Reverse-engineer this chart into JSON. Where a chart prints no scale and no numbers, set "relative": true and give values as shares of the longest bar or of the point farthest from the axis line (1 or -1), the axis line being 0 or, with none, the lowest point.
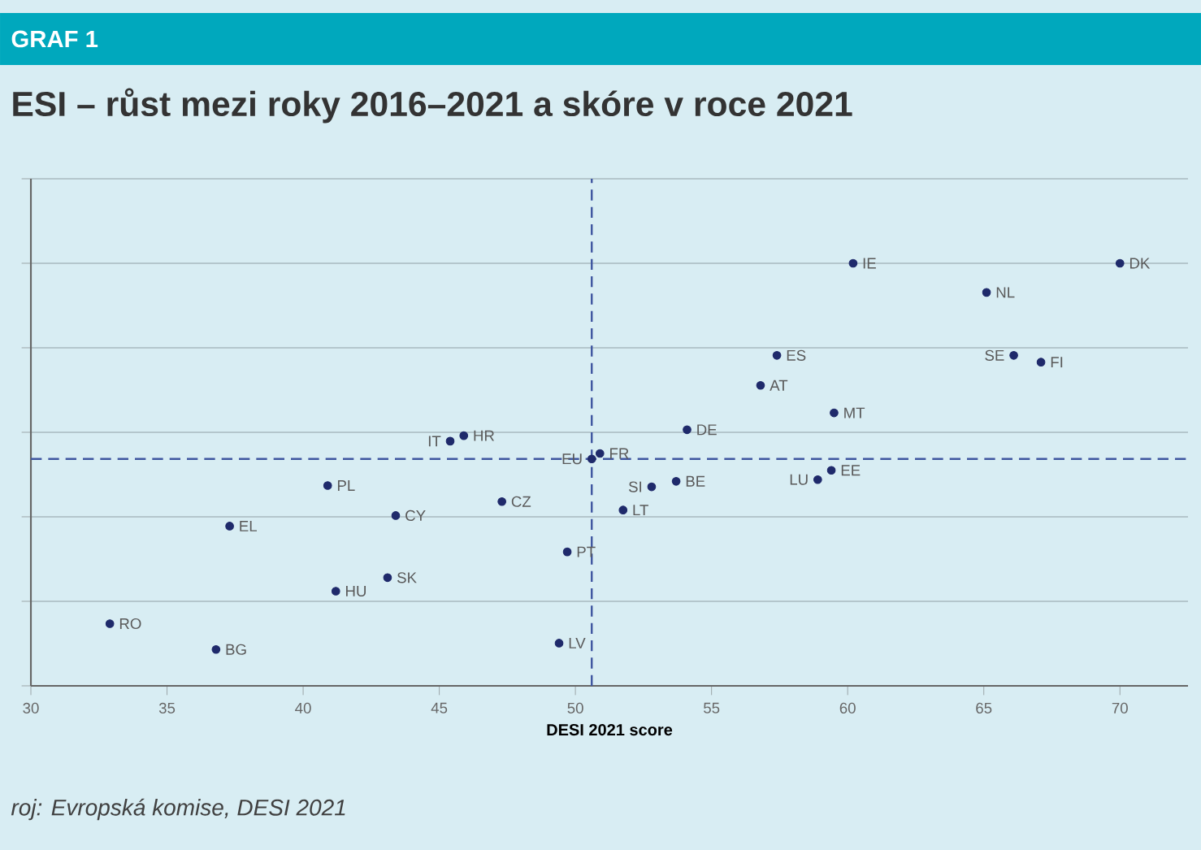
{
  "chart_data": {
    "type": "scatter",
    "title": "ESI – růst mezi roky 2016–2021 a skóre v roce 2021",
    "xlabel": "DESI 2021 score",
    "annotations": [
      "GRAF 1",
      "roj: Evropská komise, DESI 2021",
      {
        "text": "RO",
        "x": 32.9,
        "y": 0.147
      },
      {
        "text": "BG",
        "x": 36.8,
        "y": 0.086
      },
      {
        "text": "EL",
        "x": 37.3,
        "y": 0.378
      },
      {
        "text": "PL",
        "x": 40.9,
        "y": 0.474
      },
      {
        "text": "HU",
        "x": 41.2,
        "y": 0.224
      },
      {
        "text": "CY",
        "x": 43.4,
        "y": 0.403
      },
      {
        "text": "SK",
        "x": 43.1,
        "y": 0.256
      },
      {
        "text": "IT",
        "x": 45.4,
        "y": 0.579
      },
      {
        "text": "HR",
        "x": 45.9,
        "y": 0.592
      },
      {
        "text": "CZ",
        "x": 47.3,
        "y": 0.436
      },
      {
        "text": "PT",
        "x": 49.7,
        "y": 0.317
      },
      {
        "text": "LV",
        "x": 49.4,
        "y": 0.101
      },
      {
        "text": "EU",
        "x": 50.6,
        "y": 0.537
      },
      {
        "text": "FR",
        "x": 50.9,
        "y": 0.55
      },
      {
        "text": "LT",
        "x": 51.75,
        "y": 0.416
      },
      {
        "text": "SI",
        "x": 52.8,
        "y": 0.471
      },
      {
        "text": "BE",
        "x": 53.7,
        "y": 0.484
      },
      {
        "text": "DE",
        "x": 54.1,
        "y": 0.606
      },
      {
        "text": "AT",
        "x": 56.8,
        "y": 0.711
      },
      {
        "text": "ES",
        "x": 57.4,
        "y": 0.782
      },
      {
        "text": "MT",
        "x": 59.5,
        "y": 0.646
      },
      {
        "text": "LU",
        "x": 58.9,
        "y": 0.488
      },
      {
        "text": "EE",
        "x": 59.4,
        "y": 0.51
      },
      {
        "text": "IE",
        "x": 60.2,
        "y": 1.0
      },
      {
        "text": "NL",
        "x": 65.1,
        "y": 0.931
      },
      {
        "text": "SE",
        "x": 66.1,
        "y": 0.782
      },
      {
        "text": "FI",
        "x": 67.1,
        "y": 0.766
      },
      {
        "text": "DK",
        "x": 70.0,
        "y": 1.0
      }
    ],
    "x": [
      32.9,
      36.8,
      37.3,
      40.9,
      41.2,
      43.4,
      43.1,
      45.4,
      45.9,
      47.3,
      49.7,
      49.4,
      50.6,
      50.9,
      51.75,
      52.8,
      53.7,
      54.1,
      56.8,
      57.4,
      59.5,
      58.9,
      59.4,
      60.2,
      65.1,
      66.1,
      67.1,
      70.0
    ],
    "series": [
      {
        "color": "#1f2a6b",
        "values": [
          0.147,
          0.086,
          0.378,
          0.474,
          0.224,
          0.403,
          0.256,
          0.579,
          0.592,
          0.436,
          0.317,
          0.101,
          0.537,
          0.55,
          0.416,
          0.471,
          0.484,
          0.606,
          0.711,
          0.782,
          0.646,
          0.488,
          0.51,
          1.0,
          0.931,
          0.782,
          0.766,
          1.0
        ]
      }
    ],
    "relative": true,
    "xlim": [
      30,
      72.5
    ],
    "xticks": [
      30,
      35,
      40,
      45,
      50,
      55,
      60,
      65,
      70
    ],
    "grid": "y",
    "tick_labels": "x",
    "ref_lines": [
      {
        "axis": "x",
        "value": 50.6,
        "color": "#3f56a0",
        "line_style": "dashed"
      },
      {
        "axis": "y",
        "value": 0.537,
        "color": "#3f56a0",
        "line_style": "dashed"
      }
    ]
  }
}
